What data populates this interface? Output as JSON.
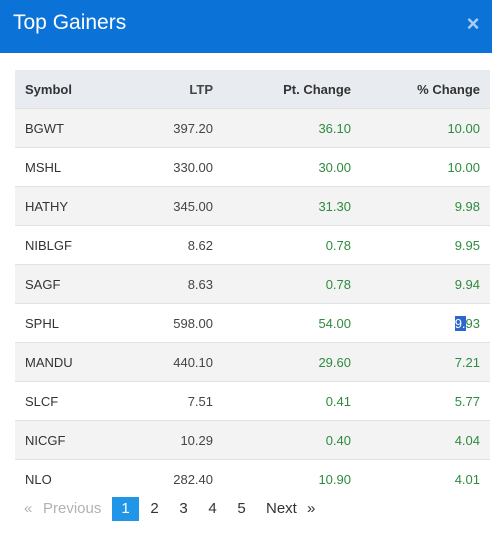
{
  "dialog": {
    "title": "Top Gainers",
    "close_glyph": "×"
  },
  "table": {
    "headers": {
      "symbol": "Symbol",
      "ltp": "LTP",
      "pt_change": "Pt. Change",
      "pct_change": "% Change"
    },
    "rows": [
      {
        "symbol": "BGWT",
        "ltp": "397.20",
        "pt": "36.10",
        "pct": "10.00"
      },
      {
        "symbol": "MSHL",
        "ltp": "330.00",
        "pt": "30.00",
        "pct": "10.00"
      },
      {
        "symbol": "HATHY",
        "ltp": "345.00",
        "pt": "31.30",
        "pct": "9.98"
      },
      {
        "symbol": "NIBLGF",
        "ltp": "8.62",
        "pt": "0.78",
        "pct": "9.95"
      },
      {
        "symbol": "SAGF",
        "ltp": "8.63",
        "pt": "0.78",
        "pct": "9.94"
      },
      {
        "symbol": "SPHL",
        "ltp": "598.00",
        "pt": "54.00",
        "pct": "9.93",
        "pct_selected": "9.",
        "pct_rest": "93"
      },
      {
        "symbol": "MANDU",
        "ltp": "440.10",
        "pt": "29.60",
        "pct": "7.21"
      },
      {
        "symbol": "SLCF",
        "ltp": "7.51",
        "pt": "0.41",
        "pct": "5.77"
      },
      {
        "symbol": "NICGF",
        "ltp": "10.29",
        "pt": "0.40",
        "pct": "4.04"
      },
      {
        "symbol": "NLO",
        "ltp": "282.40",
        "pt": "10.90",
        "pct": "4.01"
      }
    ]
  },
  "pagination": {
    "prev_arrow": "«",
    "prev": "Previous",
    "pages": [
      "1",
      "2",
      "3",
      "4",
      "5"
    ],
    "current": "1",
    "next": "Next",
    "next_arrow": "»"
  },
  "colors": {
    "header": "#0b73d8",
    "positive": "#2e8b3f",
    "active_page": "#2196e8"
  }
}
